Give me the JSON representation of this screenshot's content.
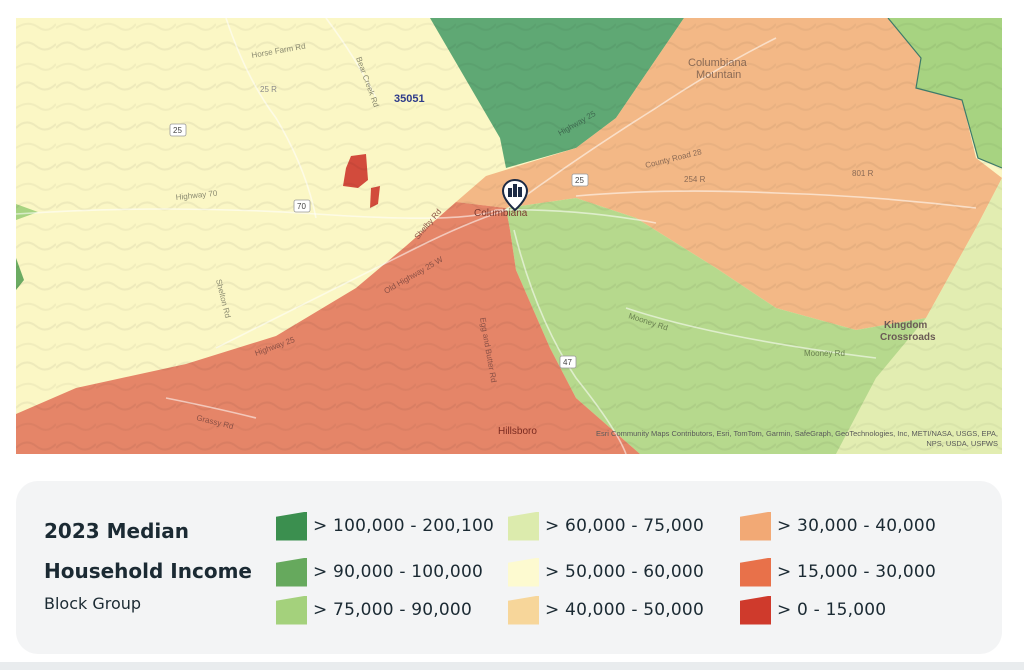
{
  "map": {
    "labels": {
      "zip": "35051",
      "town": "Columbiana",
      "hillsboro": "Hillsboro",
      "mountain_line1": "Columbiana",
      "mountain_line2": "Mountain",
      "kingdom_line1": "Kingdom",
      "kingdom_line2": "Crossroads",
      "road_highway70": "Highway 70",
      "road_old_hwy25": "Old Highway 25 W",
      "road_highway25": "Highway 25",
      "road_county_road": "County Road 28",
      "road_shelby": "Shelby Rd",
      "road_highway25_ne": "Highway 25",
      "road_eggs_butter": "Egg and Butter Rd",
      "road_mooney": "Mooney Rd",
      "road_mooney2": "Mooney Rd",
      "road_horse_farm": "Horse Farm Rd",
      "road_grassy": "Grassy Rd",
      "road_bear_creek": "Bear Creek Rd",
      "road_shelton": "Shelton Rd",
      "shield_25a": "25",
      "shield_70": "70",
      "shield_25b": "25",
      "shield_47": "47",
      "shield_25r": "25 R",
      "shield_254r": "254 R",
      "shield_801r": "801 R"
    },
    "attribution_line1": "Esri Community Maps Contributors, Esri, TomTom, Garmin, SafeGraph, GeoTechnologies, Inc, METI/NASA, USGS, EPA,",
    "attribution_line2": "NPS, USDA, USFWS",
    "marker_icon": "map-pin-buildings-icon"
  },
  "legend": {
    "title_line1": "2023 Median",
    "title_line2": "Household Income",
    "subtitle": "Block Group",
    "items": [
      {
        "label": "> 100,000 - 200,100",
        "color": "#3b8f4f"
      },
      {
        "label": "> 90,000 - 100,000",
        "color": "#66a95d"
      },
      {
        "label": "> 75,000 - 90,000",
        "color": "#a4d17c"
      },
      {
        "label": "> 60,000 - 75,000",
        "color": "#dcebad"
      },
      {
        "label": "> 50,000 - 60,000",
        "color": "#fdfad0"
      },
      {
        "label": "> 40,000 - 50,000",
        "color": "#f7d69a"
      },
      {
        "label": "> 30,000 - 40,000",
        "color": "#f2a975"
      },
      {
        "label": "> 15,000 - 30,000",
        "color": "#e8714a"
      },
      {
        "label": "> 0 - 15,000",
        "color": "#cf3a2c"
      }
    ]
  }
}
